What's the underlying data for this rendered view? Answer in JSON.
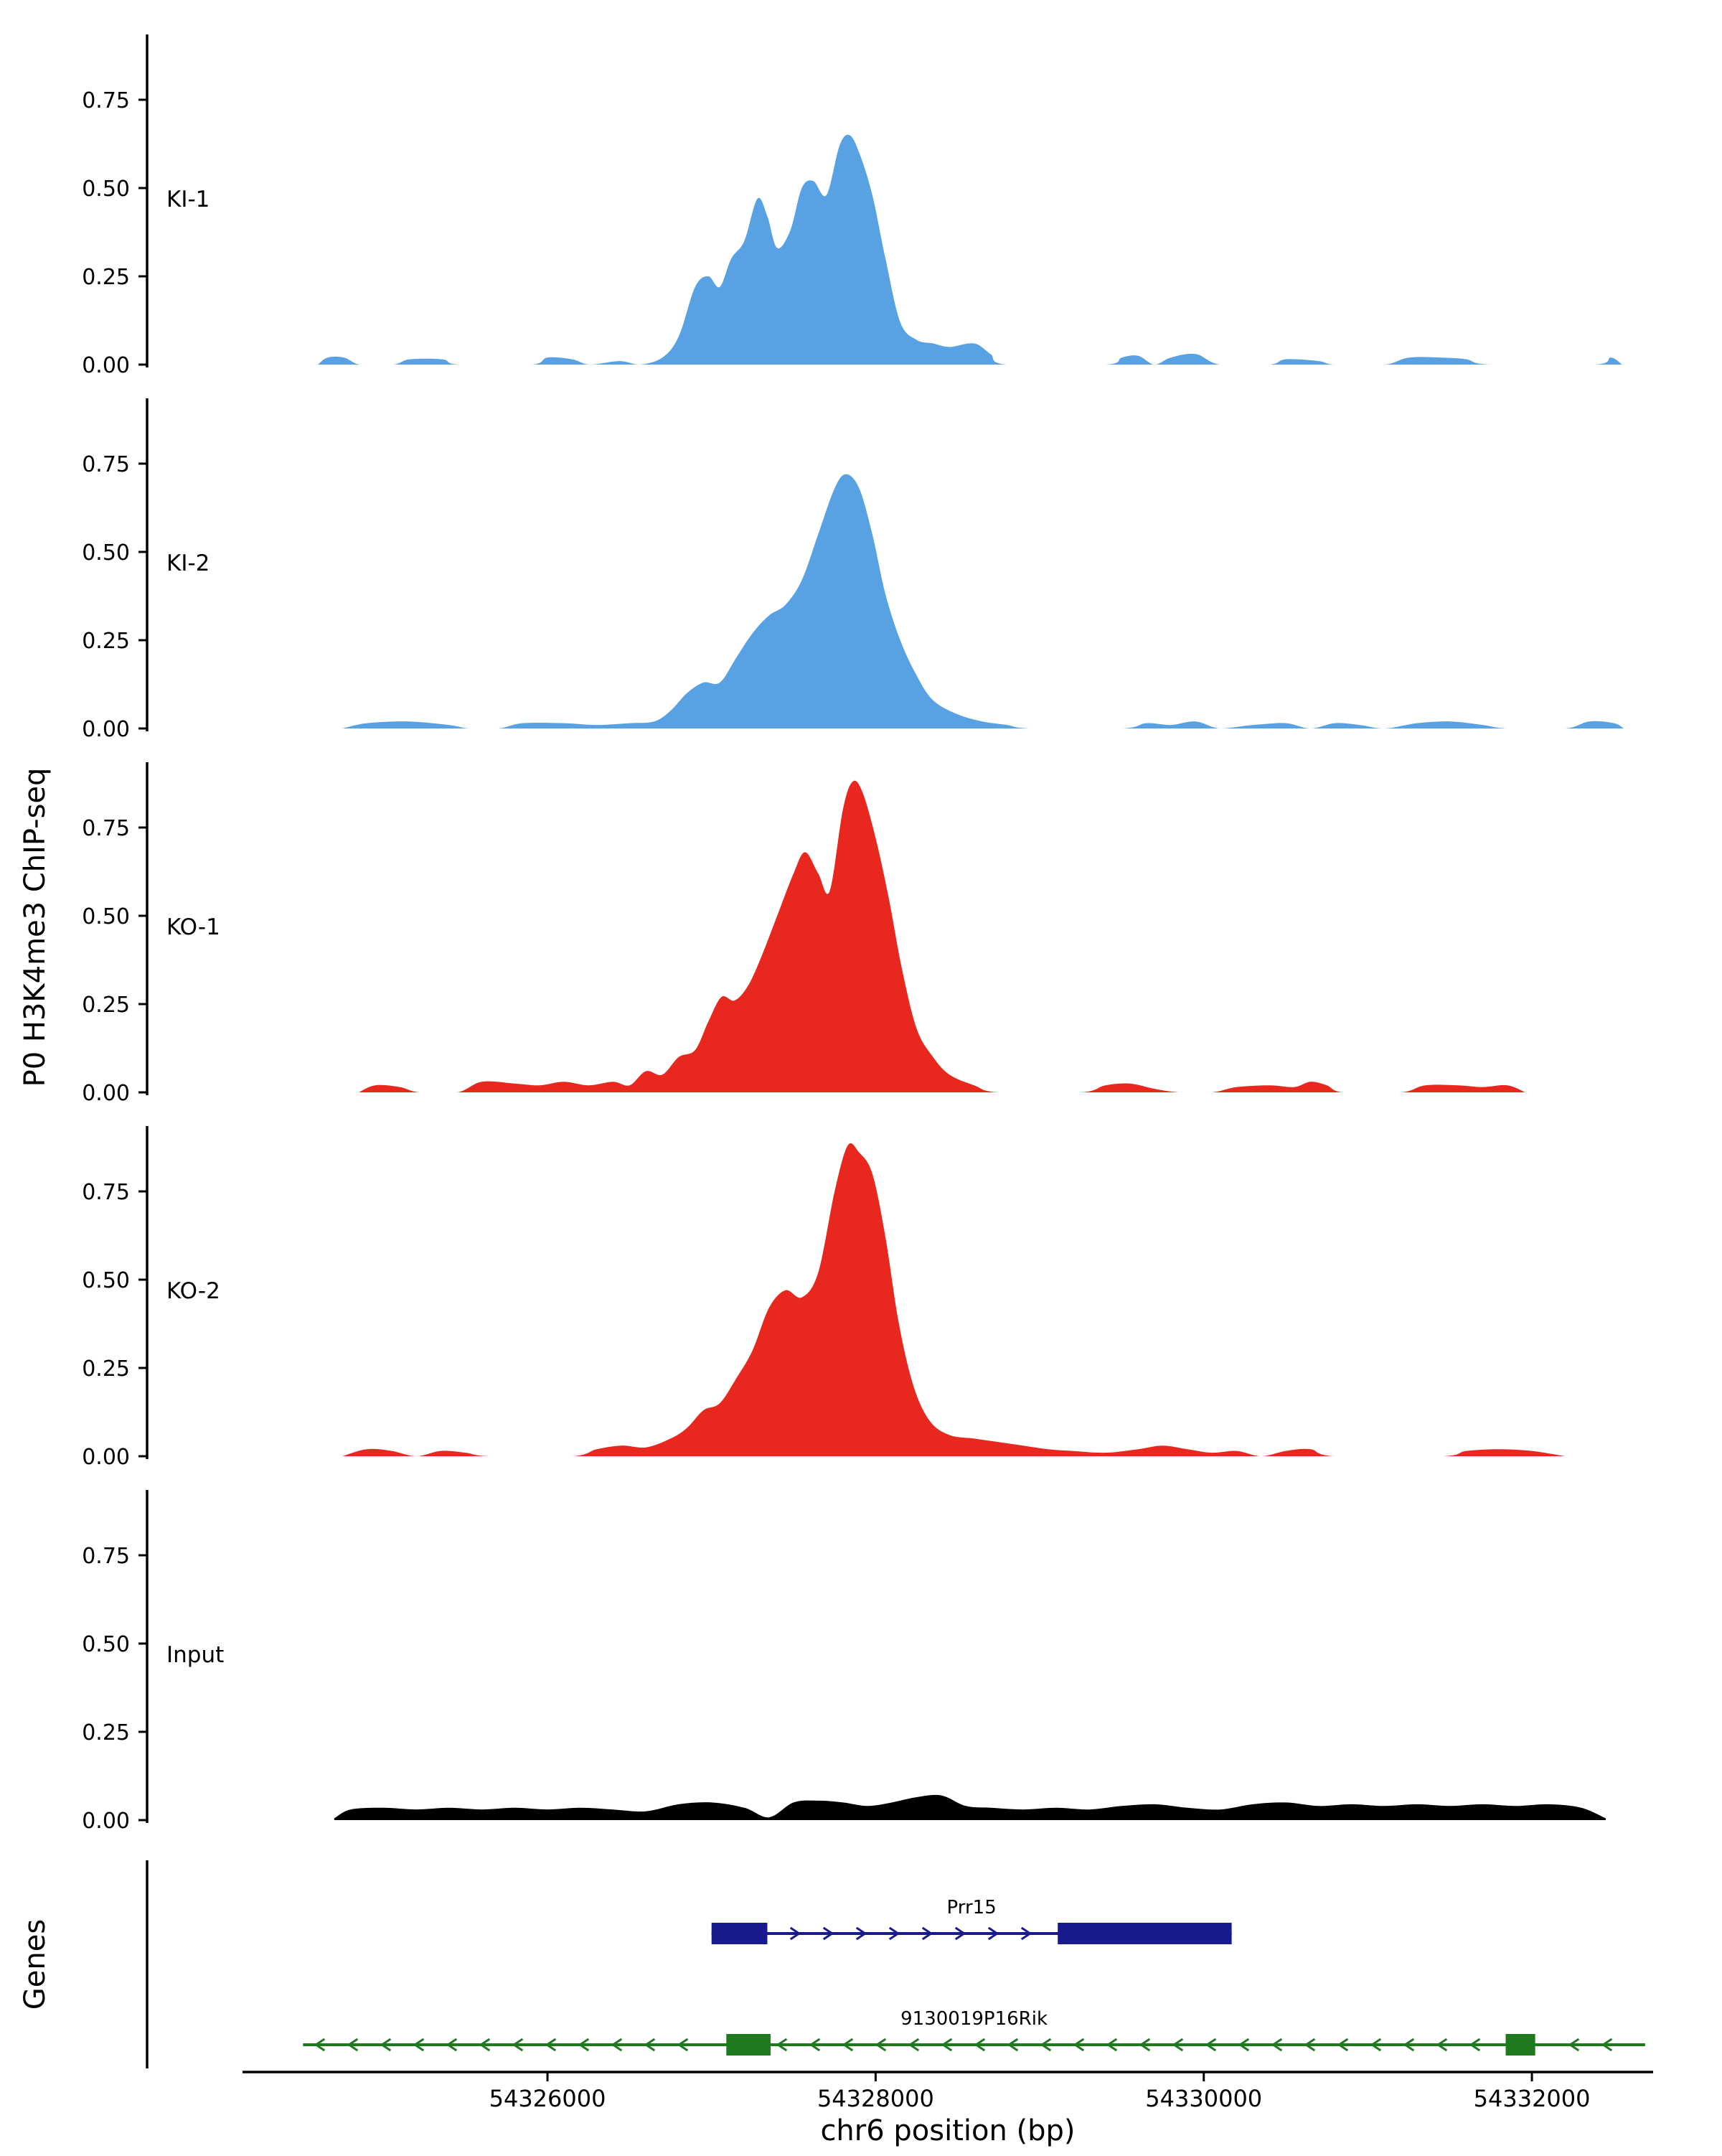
{
  "figure": {
    "ylabel_left": "P0 H3K4me3 ChIP-seq",
    "genes_panel_label": "Genes",
    "xlabel": "chr6 position (bp)",
    "colors": {
      "ki": "#58A2E3",
      "ko": "#E8281E",
      "input": "#000000",
      "prr15": "#1A1A8F",
      "rik": "#1F7A1F",
      "axis": "#000000"
    }
  },
  "chart_data": {
    "type": "area",
    "x_domain": [
      54324150,
      54332730
    ],
    "x_ticks": [
      54326000,
      54328000,
      54330000,
      54332000
    ],
    "x_tick_labels": [
      "54326000",
      "54328000",
      "54330000",
      "54332000"
    ],
    "y_ticks": [
      0.0,
      0.25,
      0.5,
      0.75
    ],
    "y_tick_labels": [
      "0.00",
      "0.25",
      "0.50",
      "0.75"
    ],
    "y_max": 0.92,
    "tracks": [
      {
        "label": "KI-1",
        "color_key": "ki",
        "points": [
          [
            54324600,
            0
          ],
          [
            54324660,
            0.02
          ],
          [
            54324760,
            0.02
          ],
          [
            54324860,
            0
          ],
          [
            54325060,
            0
          ],
          [
            54325160,
            0.015
          ],
          [
            54325360,
            0.015
          ],
          [
            54325460,
            0
          ],
          [
            54325900,
            0
          ],
          [
            54326000,
            0.02
          ],
          [
            54326150,
            0.015
          ],
          [
            54326260,
            0
          ],
          [
            54326440,
            0.01
          ],
          [
            54326560,
            0
          ],
          [
            54326700,
            0.02
          ],
          [
            54326800,
            0.08
          ],
          [
            54326900,
            0.22
          ],
          [
            54326980,
            0.25
          ],
          [
            54327050,
            0.22
          ],
          [
            54327120,
            0.3
          ],
          [
            54327200,
            0.35
          ],
          [
            54327280,
            0.47
          ],
          [
            54327340,
            0.42
          ],
          [
            54327400,
            0.33
          ],
          [
            54327480,
            0.38
          ],
          [
            54327550,
            0.5
          ],
          [
            54327620,
            0.52
          ],
          [
            54327700,
            0.48
          ],
          [
            54327780,
            0.62
          ],
          [
            54327840,
            0.65
          ],
          [
            54327900,
            0.6
          ],
          [
            54327980,
            0.48
          ],
          [
            54328060,
            0.3
          ],
          [
            54328150,
            0.12
          ],
          [
            54328250,
            0.07
          ],
          [
            54328350,
            0.06
          ],
          [
            54328450,
            0.05
          ],
          [
            54328600,
            0.06
          ],
          [
            54328700,
            0.03
          ],
          [
            54328800,
            0
          ],
          [
            54329400,
            0
          ],
          [
            54329500,
            0.02
          ],
          [
            54329600,
            0.025
          ],
          [
            54329700,
            0
          ],
          [
            54329800,
            0.02
          ],
          [
            54329950,
            0.03
          ],
          [
            54330100,
            0
          ],
          [
            54330400,
            0
          ],
          [
            54330500,
            0.015
          ],
          [
            54330700,
            0.01
          ],
          [
            54330800,
            0
          ],
          [
            54331100,
            0
          ],
          [
            54331250,
            0.02
          ],
          [
            54331450,
            0.02
          ],
          [
            54331600,
            0.015
          ],
          [
            54331750,
            0
          ],
          [
            54332380,
            0
          ],
          [
            54332480,
            0.02
          ],
          [
            54332550,
            0
          ]
        ]
      },
      {
        "label": "KI-2",
        "color_key": "ki",
        "points": [
          [
            54324750,
            0
          ],
          [
            54324900,
            0.015
          ],
          [
            54325150,
            0.02
          ],
          [
            54325400,
            0.01
          ],
          [
            54325520,
            0
          ],
          [
            54325700,
            0
          ],
          [
            54325850,
            0.015
          ],
          [
            54326100,
            0.015
          ],
          [
            54326300,
            0.01
          ],
          [
            54326500,
            0.015
          ],
          [
            54326650,
            0.02
          ],
          [
            54326750,
            0.05
          ],
          [
            54326850,
            0.1
          ],
          [
            54326950,
            0.13
          ],
          [
            54327050,
            0.13
          ],
          [
            54327150,
            0.2
          ],
          [
            54327250,
            0.27
          ],
          [
            54327350,
            0.32
          ],
          [
            54327450,
            0.35
          ],
          [
            54327550,
            0.42
          ],
          [
            54327650,
            0.55
          ],
          [
            54327750,
            0.68
          ],
          [
            54327820,
            0.72
          ],
          [
            54327900,
            0.68
          ],
          [
            54327980,
            0.55
          ],
          [
            54328060,
            0.38
          ],
          [
            54328150,
            0.25
          ],
          [
            54328250,
            0.15
          ],
          [
            54328350,
            0.08
          ],
          [
            54328500,
            0.04
          ],
          [
            54328650,
            0.02
          ],
          [
            54328800,
            0.01
          ],
          [
            54328950,
            0
          ],
          [
            54329500,
            0
          ],
          [
            54329650,
            0.015
          ],
          [
            54329800,
            0.01
          ],
          [
            54329950,
            0.02
          ],
          [
            54330100,
            0
          ],
          [
            54330300,
            0.01
          ],
          [
            54330500,
            0.015
          ],
          [
            54330650,
            0
          ],
          [
            54330800,
            0.015
          ],
          [
            54330950,
            0.01
          ],
          [
            54331100,
            0
          ],
          [
            54331300,
            0.015
          ],
          [
            54331500,
            0.02
          ],
          [
            54331700,
            0.01
          ],
          [
            54331850,
            0
          ],
          [
            54332200,
            0
          ],
          [
            54332350,
            0.02
          ],
          [
            54332500,
            0.015
          ],
          [
            54332560,
            0
          ]
        ]
      },
      {
        "label": "KO-1",
        "color_key": "ko",
        "points": [
          [
            54324850,
            0
          ],
          [
            54324950,
            0.02
          ],
          [
            54325100,
            0.015
          ],
          [
            54325220,
            0
          ],
          [
            54325450,
            0
          ],
          [
            54325600,
            0.03
          ],
          [
            54325800,
            0.025
          ],
          [
            54325950,
            0.02
          ],
          [
            54326100,
            0.03
          ],
          [
            54326250,
            0.02
          ],
          [
            54326400,
            0.03
          ],
          [
            54326500,
            0.02
          ],
          [
            54326600,
            0.06
          ],
          [
            54326700,
            0.05
          ],
          [
            54326800,
            0.1
          ],
          [
            54326900,
            0.12
          ],
          [
            54326980,
            0.2
          ],
          [
            54327060,
            0.27
          ],
          [
            54327140,
            0.26
          ],
          [
            54327220,
            0.3
          ],
          [
            54327300,
            0.38
          ],
          [
            54327400,
            0.5
          ],
          [
            54327500,
            0.62
          ],
          [
            54327570,
            0.68
          ],
          [
            54327650,
            0.62
          ],
          [
            54327720,
            0.57
          ],
          [
            54327800,
            0.8
          ],
          [
            54327860,
            0.88
          ],
          [
            54327920,
            0.85
          ],
          [
            54328000,
            0.72
          ],
          [
            54328080,
            0.55
          ],
          [
            54328160,
            0.35
          ],
          [
            54328250,
            0.18
          ],
          [
            54328350,
            0.1
          ],
          [
            54328450,
            0.05
          ],
          [
            54328600,
            0.02
          ],
          [
            54328750,
            0
          ],
          [
            54329250,
            0
          ],
          [
            54329400,
            0.02
          ],
          [
            54329550,
            0.025
          ],
          [
            54329700,
            0.01
          ],
          [
            54329850,
            0
          ],
          [
            54330050,
            0
          ],
          [
            54330200,
            0.015
          ],
          [
            54330400,
            0.02
          ],
          [
            54330550,
            0.015
          ],
          [
            54330650,
            0.03
          ],
          [
            54330750,
            0.02
          ],
          [
            54330850,
            0
          ],
          [
            54331200,
            0
          ],
          [
            54331350,
            0.02
          ],
          [
            54331550,
            0.02
          ],
          [
            54331700,
            0.015
          ],
          [
            54331850,
            0.02
          ],
          [
            54331960,
            0
          ]
        ]
      },
      {
        "label": "KO-2",
        "color_key": "ko",
        "points": [
          [
            54324750,
            0
          ],
          [
            54324900,
            0.02
          ],
          [
            54325050,
            0.015
          ],
          [
            54325200,
            0
          ],
          [
            54325350,
            0.015
          ],
          [
            54325500,
            0.01
          ],
          [
            54325650,
            0
          ],
          [
            54326150,
            0
          ],
          [
            54326300,
            0.02
          ],
          [
            54326450,
            0.03
          ],
          [
            54326600,
            0.025
          ],
          [
            54326750,
            0.05
          ],
          [
            54326850,
            0.08
          ],
          [
            54326950,
            0.13
          ],
          [
            54327050,
            0.15
          ],
          [
            54327150,
            0.22
          ],
          [
            54327250,
            0.3
          ],
          [
            54327350,
            0.42
          ],
          [
            54327450,
            0.47
          ],
          [
            54327550,
            0.45
          ],
          [
            54327650,
            0.52
          ],
          [
            54327750,
            0.75
          ],
          [
            54327830,
            0.88
          ],
          [
            54327900,
            0.86
          ],
          [
            54327980,
            0.8
          ],
          [
            54328060,
            0.62
          ],
          [
            54328140,
            0.38
          ],
          [
            54328230,
            0.2
          ],
          [
            54328330,
            0.1
          ],
          [
            54328450,
            0.06
          ],
          [
            54328600,
            0.05
          ],
          [
            54328750,
            0.04
          ],
          [
            54328900,
            0.03
          ],
          [
            54329050,
            0.02
          ],
          [
            54329200,
            0.015
          ],
          [
            54329400,
            0.01
          ],
          [
            54329600,
            0.02
          ],
          [
            54329750,
            0.03
          ],
          [
            54329900,
            0.02
          ],
          [
            54330050,
            0.01
          ],
          [
            54330200,
            0.015
          ],
          [
            54330350,
            0
          ],
          [
            54330500,
            0.015
          ],
          [
            54330650,
            0.02
          ],
          [
            54330800,
            0
          ],
          [
            54331450,
            0
          ],
          [
            54331600,
            0.015
          ],
          [
            54331800,
            0.02
          ],
          [
            54332000,
            0.015
          ],
          [
            54332200,
            0
          ]
        ]
      },
      {
        "label": "Input",
        "color_key": "input",
        "points": [
          [
            54324700,
            0.005
          ],
          [
            54324800,
            0.03
          ],
          [
            54325000,
            0.035
          ],
          [
            54325200,
            0.03
          ],
          [
            54325400,
            0.035
          ],
          [
            54325600,
            0.03
          ],
          [
            54325800,
            0.035
          ],
          [
            54326000,
            0.03
          ],
          [
            54326200,
            0.035
          ],
          [
            54326400,
            0.03
          ],
          [
            54326600,
            0.025
          ],
          [
            54326800,
            0.045
          ],
          [
            54327000,
            0.05
          ],
          [
            54327200,
            0.035
          ],
          [
            54327350,
            0.008
          ],
          [
            54327500,
            0.05
          ],
          [
            54327650,
            0.055
          ],
          [
            54327800,
            0.05
          ],
          [
            54327950,
            0.04
          ],
          [
            54328100,
            0.05
          ],
          [
            54328250,
            0.065
          ],
          [
            54328400,
            0.07
          ],
          [
            54328550,
            0.04
          ],
          [
            54328700,
            0.035
          ],
          [
            54328900,
            0.03
          ],
          [
            54329100,
            0.035
          ],
          [
            54329300,
            0.03
          ],
          [
            54329500,
            0.04
          ],
          [
            54329700,
            0.045
          ],
          [
            54329900,
            0.035
          ],
          [
            54330100,
            0.03
          ],
          [
            54330300,
            0.045
          ],
          [
            54330500,
            0.05
          ],
          [
            54330700,
            0.04
          ],
          [
            54330900,
            0.045
          ],
          [
            54331100,
            0.04
          ],
          [
            54331300,
            0.045
          ],
          [
            54331500,
            0.04
          ],
          [
            54331700,
            0.045
          ],
          [
            54331900,
            0.04
          ],
          [
            54332100,
            0.045
          ],
          [
            54332300,
            0.035
          ],
          [
            54332450,
            0.005
          ]
        ]
      }
    ],
    "genes": [
      {
        "name": "Prr15",
        "strand": "+",
        "color_key": "prr15",
        "start": 54327000,
        "end": 54330170,
        "exons": [
          [
            54327000,
            54327340
          ],
          [
            54329110,
            54330170
          ]
        ]
      },
      {
        "name": "9130019P16Rik",
        "strand": "-",
        "color_key": "rik",
        "start": 54324510,
        "end": 54332690,
        "exons": [
          [
            54327090,
            54327360
          ],
          [
            54331840,
            54332020
          ]
        ]
      }
    ]
  }
}
